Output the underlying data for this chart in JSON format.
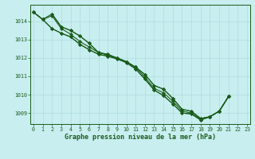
{
  "title": "Graphe pression niveau de la mer (hPa)",
  "bg_color": "#c8eef0",
  "line_color": "#1a5c1a",
  "xlim": [
    -0.3,
    23.3
  ],
  "ylim": [
    1008.4,
    1014.9
  ],
  "yticks": [
    1009,
    1010,
    1011,
    1012,
    1013,
    1014
  ],
  "xticks": [
    0,
    1,
    2,
    3,
    4,
    5,
    6,
    7,
    8,
    9,
    10,
    11,
    12,
    13,
    14,
    15,
    16,
    17,
    18,
    19,
    20,
    21,
    22,
    23
  ],
  "lines": [
    {
      "x": [
        0,
        1,
        2,
        3,
        4,
        5,
        6,
        7,
        8,
        9,
        10,
        11,
        12,
        13,
        14,
        15,
        16,
        17,
        18,
        19,
        20,
        21
      ],
      "y": [
        1014.5,
        1014.1,
        1014.4,
        1013.7,
        1013.5,
        1013.2,
        1012.8,
        1012.3,
        1012.2,
        1012.0,
        1011.8,
        1011.5,
        1011.1,
        1010.5,
        1010.3,
        1009.8,
        1009.2,
        1009.1,
        1008.7,
        1008.8,
        1009.1,
        1009.9
      ]
    },
    {
      "x": [
        0,
        1,
        2,
        3,
        4,
        5,
        6,
        7,
        8,
        9,
        10,
        11,
        12,
        13,
        14,
        15,
        16,
        17,
        18,
        19,
        20,
        21
      ],
      "y": [
        1014.5,
        1014.1,
        1014.3,
        1013.6,
        1013.3,
        1012.9,
        1012.6,
        1012.3,
        1012.15,
        1012.0,
        1011.8,
        1011.5,
        1010.95,
        1010.35,
        1010.1,
        1009.65,
        1009.1,
        1009.0,
        1008.65,
        1008.8,
        1009.1,
        1009.9
      ]
    },
    {
      "x": [
        0,
        1,
        2,
        3,
        4,
        5,
        6,
        7,
        8,
        9,
        10,
        11,
        12,
        13,
        14,
        15,
        16,
        17,
        18,
        19,
        20,
        21
      ],
      "y": [
        1014.5,
        1014.1,
        1013.6,
        1013.35,
        1013.15,
        1012.75,
        1012.45,
        1012.2,
        1012.1,
        1011.95,
        1011.75,
        1011.4,
        1010.85,
        1010.25,
        1009.95,
        1009.5,
        1009.0,
        1008.95,
        1008.62,
        1008.8,
        1009.1,
        1009.9
      ]
    },
    {
      "x": [
        0,
        1,
        2,
        3,
        4,
        5,
        6,
        7,
        8,
        9,
        10,
        11,
        12,
        13,
        14,
        15,
        16,
        17,
        18,
        19,
        20,
        21
      ],
      "y": [
        1014.5,
        1014.1,
        1013.6,
        1013.35,
        1013.15,
        1012.75,
        1012.45,
        1012.2,
        1012.1,
        1011.95,
        1011.75,
        1011.4,
        1010.85,
        1010.25,
        1009.95,
        1009.5,
        1009.0,
        1008.95,
        1008.62,
        1008.8,
        1009.1,
        1009.9
      ]
    },
    {
      "x": [
        2,
        3,
        4,
        5,
        6,
        7,
        8,
        9,
        10,
        11,
        12,
        13,
        14,
        15,
        16,
        17,
        18,
        19,
        20,
        21
      ],
      "y": [
        1014.4,
        1013.7,
        1013.5,
        1013.2,
        1012.8,
        1012.3,
        1012.2,
        1012.0,
        1011.8,
        1011.5,
        1011.1,
        1010.5,
        1010.3,
        1009.8,
        1009.2,
        1009.1,
        1008.7,
        1008.8,
        1009.1,
        1009.9
      ]
    }
  ]
}
